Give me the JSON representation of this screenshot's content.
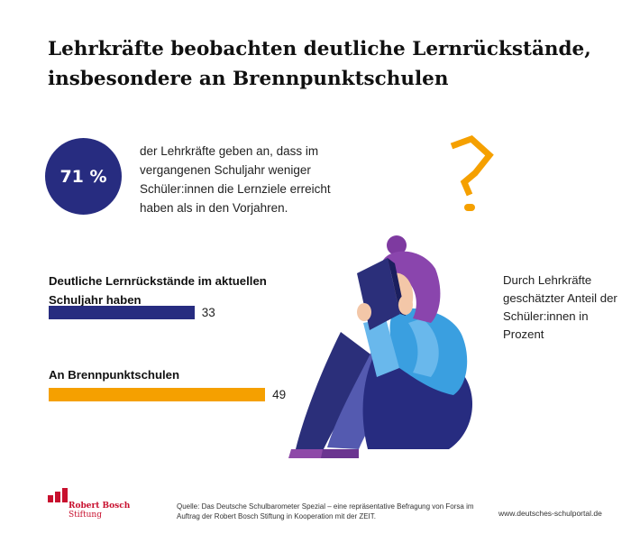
{
  "title": "Lehrkräfte beobachten deutliche Lernrückstände, insbesondere an Brennpunktschulen",
  "stat": {
    "value": "71 %",
    "text": "der Lehrkräfte geben an, dass im vergangenen Schuljahr weniger Schüler:innen die Lernziele erreicht haben als in den Vorjahren."
  },
  "side_note": "Durch Lehrkräfte geschätzter Anteil der Schüler:innen in Prozent",
  "chart_data": {
    "type": "bar",
    "orientation": "horizontal",
    "categories": [
      "Deutliche Lernrückstände im aktuellen Schuljahr haben",
      "An Brennpunktschulen"
    ],
    "values": [
      33,
      49
    ],
    "unit": "",
    "xlim": [
      0,
      100
    ],
    "colors": [
      "#272c80",
      "#f5a000"
    ],
    "grid": false
  },
  "logo": {
    "line1": "Robert Bosch",
    "line2": "Stiftung"
  },
  "source": "Quelle: Das Deutsche Schulbarometer Spezial – eine repräsentative Befragung von Forsa im Auftrag der Robert Bosch Stiftung in Kooperation mit der ZEIT.",
  "url": "www.deutsches-schulportal.de",
  "colors": {
    "navy": "#272c80",
    "orange": "#f5a000",
    "brand_red": "#c8102e"
  }
}
